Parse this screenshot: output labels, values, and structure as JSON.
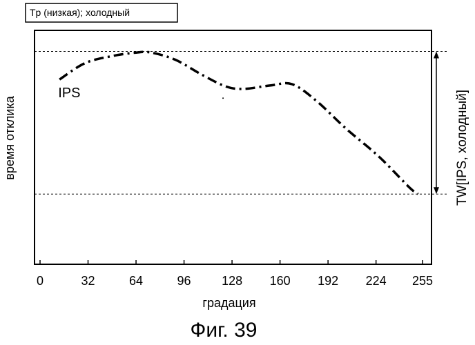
{
  "chart_data": {
    "type": "line",
    "header_label": "Tp (низкая); холодный",
    "xlabel": "градация",
    "ylabel": "время отклика",
    "caption": "Фиг. 39",
    "x_ticks": [
      0,
      32,
      64,
      96,
      128,
      160,
      192,
      224,
      255
    ],
    "xlim": [
      0,
      255
    ],
    "ylim": [
      0,
      1
    ],
    "y_ticks": [],
    "series": [
      {
        "name": "IPS",
        "style": "dash-dot",
        "x": [
          13,
          30,
          48,
          64,
          74,
          90,
          108,
          124,
          136,
          154,
          168,
          184,
          204,
          226,
          246,
          252
        ],
        "y": [
          0.79,
          0.86,
          0.89,
          0.905,
          0.905,
          0.875,
          0.81,
          0.76,
          0.75,
          0.765,
          0.77,
          0.7,
          0.58,
          0.46,
          0.33,
          0.3
        ]
      }
    ],
    "reference_lines": [
      {
        "name": "upper-dashed-line",
        "y": 0.91
      },
      {
        "name": "lower-dashed-line",
        "y": 0.3
      }
    ],
    "annotation": {
      "label": "TW[IPS, холодный]",
      "from_y": 0.91,
      "to_y": 0.3
    },
    "stray_point": {
      "x": 122,
      "y": 0.71
    }
  }
}
